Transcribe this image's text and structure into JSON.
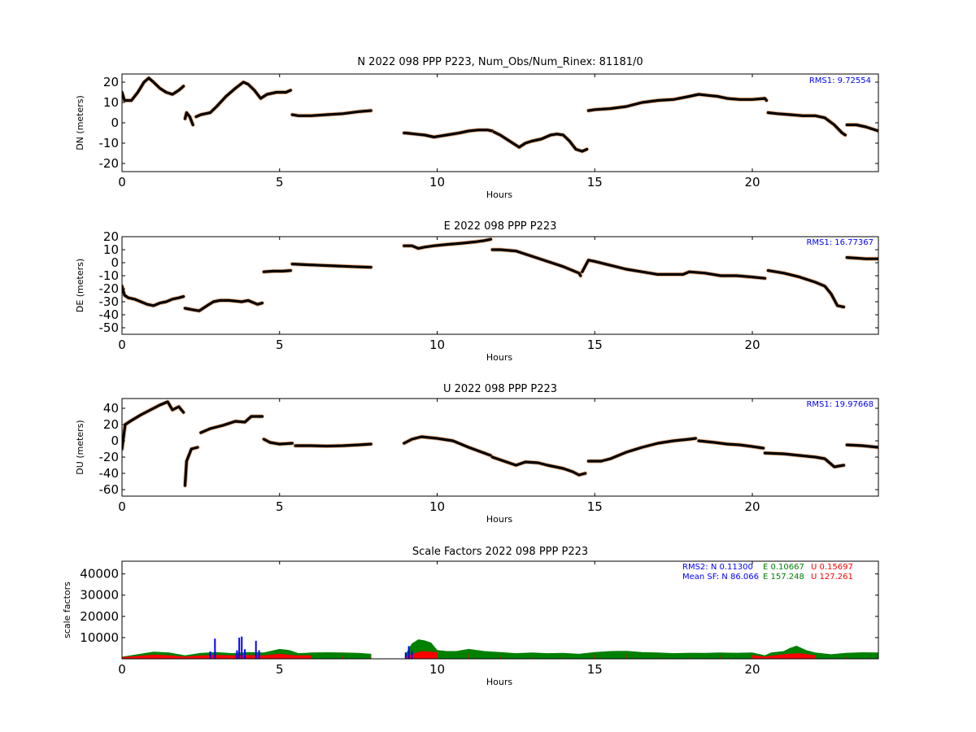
{
  "charts": [
    {
      "type": "scatter",
      "title": "N 2022 098 PPP  P223, Num_Obs/Num_Rinex: 81181/0",
      "xlabel": "Hours",
      "ylabel": "DN (meters)",
      "xlim": [
        0,
        24
      ],
      "ylim": [
        -24,
        24
      ],
      "xticks": [
        0,
        5,
        10,
        15,
        20
      ],
      "yticks": [
        -20,
        -10,
        0,
        10,
        20
      ],
      "annotation": "RMS1:  9.72554",
      "annotation_color": "#0000ff",
      "series_color": "#000000",
      "outlier_color": "#d2691e",
      "segments": [
        {
          "x": [
            0,
            0.08,
            0.3,
            0.5,
            0.7,
            0.85,
            1.0,
            1.2,
            1.4,
            1.6,
            1.8,
            1.95
          ],
          "y": [
            15,
            11,
            11,
            15,
            20,
            22,
            20,
            17,
            15,
            14,
            16,
            18
          ]
        },
        {
          "x": [
            2.0,
            2.05,
            2.15,
            2.25
          ],
          "y": [
            2,
            5,
            3,
            -1
          ]
        },
        {
          "x": [
            2.35,
            2.5,
            2.8,
            3.0,
            3.3,
            3.6,
            3.85,
            4.0,
            4.2,
            4.4,
            4.6,
            4.9,
            5.2,
            5.35
          ],
          "y": [
            3,
            4,
            5,
            8,
            13,
            17,
            20,
            19,
            16,
            12,
            14,
            15,
            15,
            16
          ]
        },
        {
          "x": [
            5.4,
            5.6,
            6.0,
            6.5,
            7.0,
            7.5,
            7.9
          ],
          "y": [
            4,
            3.5,
            3.5,
            4,
            4.5,
            5.5,
            6
          ]
        },
        {
          "x": [
            8.95,
            9.0,
            9.3,
            9.6,
            9.9,
            10.3,
            10.7,
            11.0,
            11.3,
            11.6,
            11.75
          ],
          "y": [
            -5,
            -5,
            -5.5,
            -6,
            -7,
            -6,
            -5,
            -4,
            -3.5,
            -3.5,
            -4
          ]
        },
        {
          "x": [
            11.8,
            12.0,
            12.3,
            12.6,
            12.8,
            13.0,
            13.3,
            13.6,
            13.8,
            14.0,
            14.2,
            14.4,
            14.6,
            14.75
          ],
          "y": [
            -4.5,
            -6,
            -9,
            -12,
            -10,
            -9,
            -8,
            -6,
            -5.5,
            -6,
            -9,
            -13,
            -14,
            -13
          ]
        },
        {
          "x": [
            14.8,
            15.0,
            15.5,
            16.0,
            16.5,
            17.0,
            17.5,
            18.0,
            18.3,
            18.6,
            18.9,
            19.2,
            19.6,
            20.0,
            20.4,
            20.45
          ],
          "y": [
            6,
            6.5,
            7,
            8,
            10,
            11,
            11.5,
            13,
            14,
            13.5,
            13,
            12,
            11.5,
            11.5,
            12,
            11
          ]
        },
        {
          "x": [
            20.5,
            20.8,
            21.2,
            21.6,
            22.0,
            22.3,
            22.6,
            22.85,
            22.95
          ],
          "y": [
            5,
            4.5,
            4,
            3.5,
            3.5,
            2.5,
            -1,
            -5,
            -6
          ]
        },
        {
          "x": [
            23.0,
            23.3,
            23.6,
            24.0
          ],
          "y": [
            -1,
            -1,
            -2,
            -4
          ]
        }
      ]
    },
    {
      "type": "scatter",
      "title": "E 2022 098 PPP  P223",
      "xlabel": "Hours",
      "ylabel": "DE (meters)",
      "xlim": [
        0,
        24
      ],
      "ylim": [
        -55,
        20
      ],
      "xticks": [
        0,
        5,
        10,
        15,
        20
      ],
      "yticks": [
        -50,
        -40,
        -30,
        -20,
        -10,
        0,
        10,
        20
      ],
      "annotation": "RMS1: 16.77367",
      "annotation_color": "#0000ff",
      "series_color": "#000000",
      "outlier_color": "#d2691e",
      "segments": [
        {
          "x": [
            0,
            0.08,
            0.2,
            0.4,
            0.6,
            0.8,
            1.0,
            1.2,
            1.4,
            1.6,
            1.8,
            1.95
          ],
          "y": [
            -18,
            -25,
            -27,
            -28,
            -30,
            -32,
            -33,
            -31,
            -30,
            -28,
            -27,
            -26
          ]
        },
        {
          "x": [
            2.0,
            2.2,
            2.45,
            2.7,
            2.9,
            3.1,
            3.4,
            3.8,
            4.0,
            4.3,
            4.45
          ],
          "y": [
            -35,
            -36,
            -37,
            -33,
            -30,
            -29,
            -29,
            -30,
            -29,
            -32,
            -31
          ]
        },
        {
          "x": [
            4.5,
            4.8,
            5.1,
            5.35
          ],
          "y": [
            -7,
            -6.5,
            -6.5,
            -6
          ]
        },
        {
          "x": [
            5.4,
            5.8,
            6.3,
            6.8,
            7.3,
            7.9
          ],
          "y": [
            -1,
            -1.5,
            -2,
            -2.5,
            -3,
            -3.5
          ]
        },
        {
          "x": [
            8.95,
            9.2,
            9.4,
            9.6,
            9.9,
            10.3,
            10.8,
            11.2,
            11.5,
            11.7
          ],
          "y": [
            13,
            13,
            11,
            12,
            13,
            14,
            15,
            16,
            17,
            18
          ]
        },
        {
          "x": [
            11.75,
            12.0,
            12.5,
            13.0,
            13.5,
            14.0,
            14.5,
            14.55
          ],
          "y": [
            10,
            10,
            9,
            5,
            1,
            -3,
            -8,
            -10
          ]
        },
        {
          "x": [
            14.6,
            14.8,
            15.0,
            15.5,
            16.0,
            16.5,
            17.0,
            17.5,
            17.8,
            18.0,
            18.5,
            19.0,
            19.5,
            20.0,
            20.4
          ],
          "y": [
            -7,
            2,
            1,
            -2,
            -5,
            -7,
            -9,
            -9,
            -9,
            -7,
            -8,
            -10,
            -10,
            -11,
            -12
          ]
        },
        {
          "x": [
            20.5,
            21.0,
            21.5,
            22.0,
            22.3,
            22.5,
            22.7,
            22.9
          ],
          "y": [
            -6,
            -8,
            -11,
            -15,
            -18,
            -24,
            -33,
            -34
          ]
        },
        {
          "x": [
            23.0,
            23.3,
            23.6,
            24.0
          ],
          "y": [
            4,
            3.5,
            3,
            3
          ]
        }
      ]
    },
    {
      "type": "scatter",
      "title": "U 2022 098 PPP  P223",
      "xlabel": "Hours",
      "ylabel": "DU (meters)",
      "xlim": [
        0,
        24
      ],
      "ylim": [
        -68,
        52
      ],
      "xticks": [
        0,
        5,
        10,
        15,
        20
      ],
      "yticks": [
        -60,
        -40,
        -20,
        0,
        20,
        40
      ],
      "annotation": "RMS1: 19.97668",
      "annotation_color": "#0000ff",
      "series_color": "#000000",
      "outlier_color": "#d2691e",
      "segments": [
        {
          "x": [
            0,
            0.1,
            0.3,
            0.6,
            0.9,
            1.2,
            1.45,
            1.6,
            1.8,
            1.95
          ],
          "y": [
            -10,
            20,
            25,
            32,
            38,
            44,
            48,
            38,
            42,
            35
          ]
        },
        {
          "x": [
            2.0,
            2.05,
            2.2,
            2.4
          ],
          "y": [
            -55,
            -25,
            -10,
            -8
          ]
        },
        {
          "x": [
            2.5,
            2.8,
            3.2,
            3.6,
            3.9,
            4.1,
            4.45
          ],
          "y": [
            10,
            15,
            19,
            24,
            23,
            30,
            30
          ]
        },
        {
          "x": [
            4.5,
            4.7,
            5.0,
            5.4
          ],
          "y": [
            2,
            -2,
            -4,
            -3
          ]
        },
        {
          "x": [
            5.5,
            6.0,
            6.5,
            7.0,
            7.5,
            7.9
          ],
          "y": [
            -6,
            -6,
            -6.5,
            -6,
            -5,
            -4
          ]
        },
        {
          "x": [
            8.95,
            9.2,
            9.5,
            10.0,
            10.5,
            11.0,
            11.7
          ],
          "y": [
            -3,
            2,
            5,
            3,
            0,
            -8,
            -18
          ]
        },
        {
          "x": [
            11.75,
            12.2,
            12.5,
            12.8,
            13.2,
            13.5,
            14.0,
            14.3,
            14.5,
            14.7
          ],
          "y": [
            -20,
            -26,
            -30,
            -26,
            -27,
            -30,
            -34,
            -38,
            -42,
            -40
          ]
        },
        {
          "x": [
            14.8,
            15.2,
            15.5,
            16.0,
            16.5,
            17.0,
            17.5,
            18.0,
            18.2
          ],
          "y": [
            -25,
            -25,
            -22,
            -14,
            -8,
            -3,
            0,
            2,
            3
          ]
        },
        {
          "x": [
            18.3,
            18.8,
            19.2,
            19.6,
            20.0,
            20.35
          ],
          "y": [
            0,
            -2,
            -4,
            -5,
            -7,
            -9
          ]
        },
        {
          "x": [
            20.4,
            21.0,
            21.5,
            22.0,
            22.3,
            22.6,
            22.9
          ],
          "y": [
            -15,
            -16,
            -18,
            -20,
            -22,
            -32,
            -30
          ]
        },
        {
          "x": [
            23.0,
            23.5,
            24.0
          ],
          "y": [
            -5,
            -6,
            -8
          ]
        }
      ]
    }
  ],
  "scale_chart": {
    "type": "bar",
    "title": "Scale Factors 2022 098 PPP  P223",
    "xlabel": "Hours",
    "ylabel": "scale factors",
    "xlim": [
      0,
      24
    ],
    "ylim": [
      0,
      46000
    ],
    "xticks": [
      0,
      5,
      10,
      15,
      20
    ],
    "yticks": [
      10000,
      20000,
      30000,
      40000
    ],
    "legend_lines": [
      {
        "parts": [
          {
            "text": "RMS2: N  0.11300",
            "color": "#0000ff"
          },
          {
            "text": "E  0.10667",
            "color": "#008000"
          },
          {
            "text": "U  0.15697",
            "color": "#ff0000"
          }
        ]
      },
      {
        "parts": [
          {
            "text": "Mean SF: N  86.066",
            "color": "#0000ff"
          },
          {
            "text": "E 157.248",
            "color": "#008000"
          },
          {
            "text": "U 127.261",
            "color": "#ff0000"
          }
        ]
      }
    ],
    "series": [
      {
        "name": "E",
        "color": "#008000",
        "x": [
          0,
          0.5,
          1.0,
          1.5,
          2.0,
          2.5,
          3.0,
          3.5,
          4.0,
          4.5,
          5.0,
          5.3,
          5.6,
          6.0,
          6.5,
          7.0,
          7.5,
          7.9,
          9.0,
          9.2,
          9.4,
          9.6,
          9.8,
          10.0,
          10.3,
          10.6,
          11.0,
          11.5,
          12.0,
          12.5,
          13.0,
          13.5,
          14.0,
          14.5,
          15.0,
          15.5,
          16.0,
          16.5,
          17.0,
          17.5,
          18.0,
          18.5,
          19.0,
          19.5,
          20.0,
          20.4,
          20.6,
          21.0,
          21.2,
          21.4,
          21.7,
          22.0,
          22.5,
          23.0,
          23.5,
          24.0
        ],
        "y": [
          800,
          2000,
          3200,
          2800,
          1500,
          2600,
          3000,
          2500,
          3000,
          2800,
          4500,
          4000,
          2500,
          2800,
          2900,
          2800,
          2600,
          2200,
          2000,
          7000,
          9000,
          8500,
          7500,
          4000,
          3500,
          3500,
          4500,
          3500,
          3000,
          2500,
          2800,
          2500,
          2600,
          2200,
          3000,
          3500,
          3600,
          3000,
          2800,
          2500,
          2700,
          2600,
          2800,
          2700,
          2800,
          1500,
          2800,
          3500,
          5000,
          6000,
          4000,
          2800,
          2000,
          2700,
          2900,
          2800
        ]
      },
      {
        "name": "U",
        "color": "#ff0000",
        "x": [
          0,
          0.5,
          1.0,
          1.5,
          2.0,
          2.5,
          3.0,
          3.5,
          4.0,
          4.5,
          5.0,
          5.5,
          6.0,
          7.0,
          7.9,
          9.0,
          9.5,
          10.0,
          11.0,
          12.0,
          13.0,
          14.0,
          15.0,
          16.0,
          17.0,
          18.0,
          19.0,
          20.0,
          20.4,
          21.0,
          21.5,
          22.0,
          23.0,
          24.0
        ],
        "y": [
          600,
          1200,
          1800,
          1500,
          900,
          1400,
          1700,
          1500,
          1600,
          1500,
          2200,
          1500,
          1500,
          1400,
          1300,
          1000,
          3500,
          3000,
          2200,
          1600,
          1700,
          1500,
          2000,
          2200,
          1600,
          1500,
          1600,
          1600,
          900,
          2000,
          2500,
          1500,
          1200,
          1300
        ]
      }
    ],
    "spikes": [
      {
        "name": "N",
        "color": "#0000ff",
        "x": [
          2.8,
          2.95,
          3.65,
          3.72,
          3.8,
          3.9,
          4.25,
          4.35,
          9.0,
          9.1,
          9.2
        ],
        "y": [
          3500,
          9500,
          4000,
          10000,
          10500,
          4500,
          8500,
          4000,
          3000,
          6000,
          3500
        ]
      }
    ]
  }
}
